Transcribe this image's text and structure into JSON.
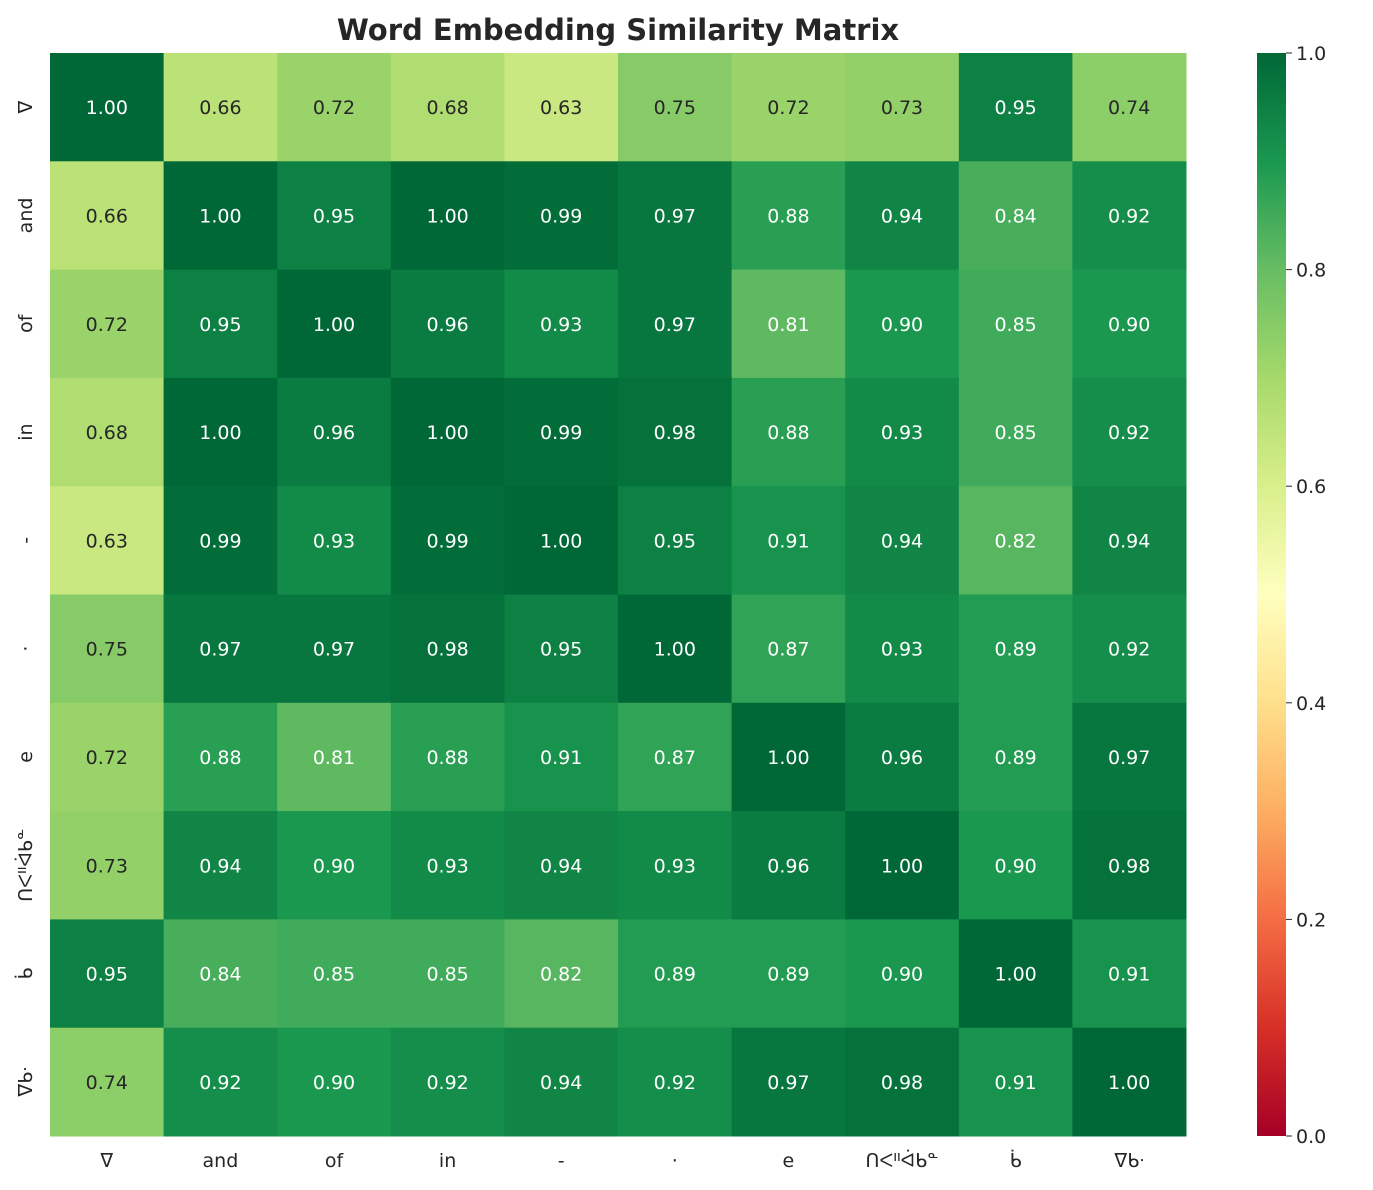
{
  "chart_data": {
    "type": "heatmap",
    "title": "Word Embedding Similarity Matrix",
    "xlabel": "",
    "ylabel": "",
    "labels": [
      "ᐁ",
      "and",
      "of",
      "in",
      "-",
      "·",
      "e",
      "ᑎᐸᐦᐋᑲᓐ",
      "ᑳ",
      "ᐁᑲᐧ"
    ],
    "values": [
      [
        1.0,
        0.66,
        0.72,
        0.68,
        0.63,
        0.75,
        0.72,
        0.73,
        0.95,
        0.74
      ],
      [
        0.66,
        1.0,
        0.95,
        1.0,
        0.99,
        0.97,
        0.88,
        0.94,
        0.84,
        0.92
      ],
      [
        0.72,
        0.95,
        1.0,
        0.96,
        0.93,
        0.97,
        0.81,
        0.9,
        0.85,
        0.9
      ],
      [
        0.68,
        1.0,
        0.96,
        1.0,
        0.99,
        0.98,
        0.88,
        0.93,
        0.85,
        0.92
      ],
      [
        0.63,
        0.99,
        0.93,
        0.99,
        1.0,
        0.95,
        0.91,
        0.94,
        0.82,
        0.94
      ],
      [
        0.75,
        0.97,
        0.97,
        0.98,
        0.95,
        1.0,
        0.87,
        0.93,
        0.89,
        0.92
      ],
      [
        0.72,
        0.88,
        0.81,
        0.88,
        0.91,
        0.87,
        1.0,
        0.96,
        0.89,
        0.97
      ],
      [
        0.73,
        0.94,
        0.9,
        0.93,
        0.94,
        0.93,
        0.96,
        1.0,
        0.9,
        0.98
      ],
      [
        0.95,
        0.84,
        0.85,
        0.85,
        0.82,
        0.89,
        0.89,
        0.9,
        1.0,
        0.91
      ],
      [
        0.74,
        0.92,
        0.9,
        0.92,
        0.94,
        0.92,
        0.97,
        0.98,
        0.91,
        1.0
      ]
    ],
    "annotation_format": "0.00",
    "colormap": "RdYlGn",
    "colormap_stops": [
      "#a50026",
      "#d73027",
      "#f46d43",
      "#fdae61",
      "#fee08b",
      "#ffffbf",
      "#d9ef8b",
      "#a6d96a",
      "#66bd63",
      "#1a9850",
      "#006837"
    ],
    "vmin": 0.0,
    "vmax": 1.0,
    "colorbar_ticks": [
      "0.0",
      "0.2",
      "0.4",
      "0.6",
      "0.8",
      "1.0"
    ],
    "colorbar_placement": "right"
  }
}
